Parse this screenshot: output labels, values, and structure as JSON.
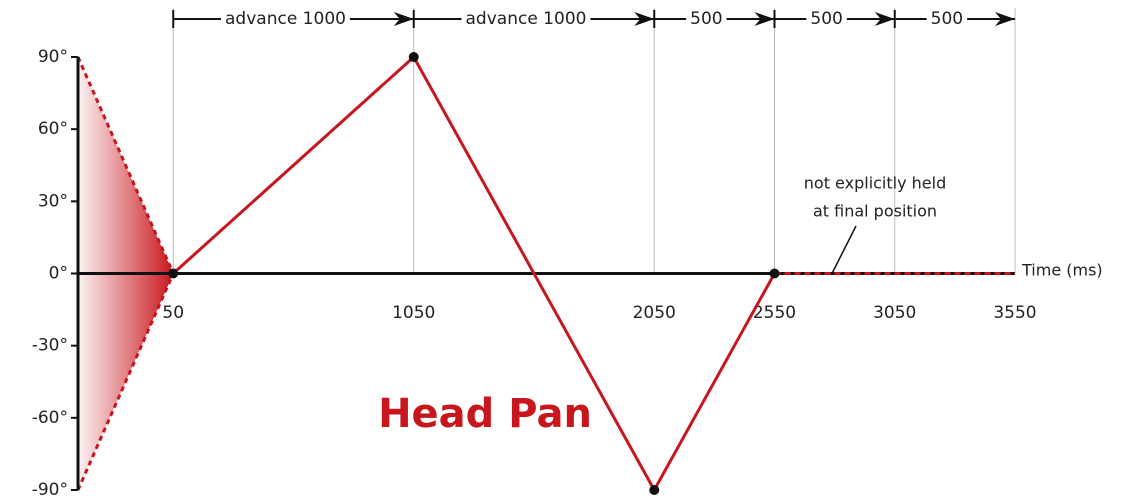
{
  "chart_data": {
    "type": "line",
    "title": "Head Pan",
    "x_label": "Time (ms)",
    "x": [
      50,
      1050,
      2050,
      2550
    ],
    "values": [
      0,
      90,
      -90,
      0
    ],
    "color": "#c8161d",
    "xlim": [
      -346,
      3550
    ],
    "xticks": [
      50,
      1050,
      2050,
      2550,
      3050,
      3550
    ],
    "ylim": [
      -90,
      90
    ],
    "yticks": [
      {
        "value": 90,
        "label": "90°"
      },
      {
        "value": 60,
        "label": "60°"
      },
      {
        "value": 30,
        "label": "30°"
      },
      {
        "value": 0,
        "label": "0°"
      },
      {
        "value": -30,
        "label": "-30°"
      },
      {
        "value": -60,
        "label": "-60°"
      },
      {
        "value": -90,
        "label": "-90°"
      }
    ],
    "grid": true,
    "intervals": [
      {
        "label": "advance 1000",
        "start": 50,
        "end": 1050
      },
      {
        "label": "advance 1000",
        "start": 1050,
        "end": 2050
      },
      {
        "label": "500",
        "start": 2050,
        "end": 2550
      },
      {
        "label": "500",
        "start": 2550,
        "end": 3050
      },
      {
        "label": "500",
        "start": 3050,
        "end": 3550
      }
    ],
    "annotation": [
      "not explicitly held",
      "at final position"
    ]
  }
}
